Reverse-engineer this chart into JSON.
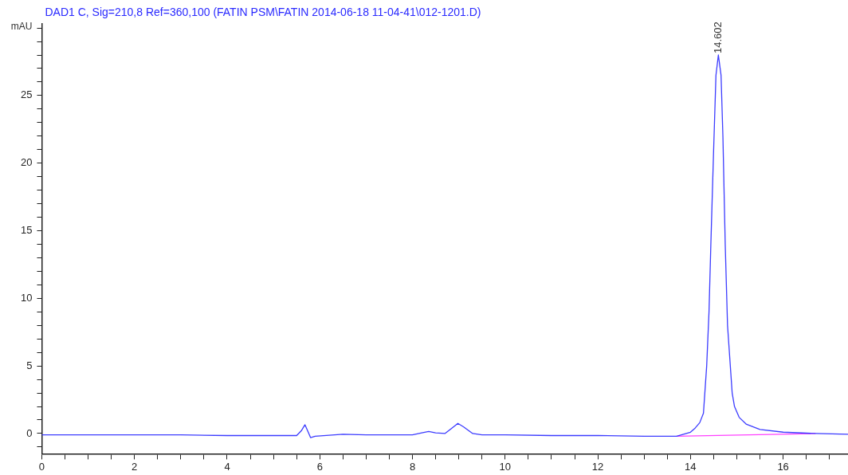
{
  "chart_data": {
    "type": "line",
    "title": "DAD1 C, Sig=210,8 Ref=360,100 (FATIN PSM\\FATIN 2014-06-18 11-04-41\\012-1201.D)",
    "ylabel": "mAU",
    "series": [
      {
        "color": "#3c3cff",
        "x": [
          0,
          1,
          2,
          3,
          4,
          5,
          5.5,
          5.6,
          5.68,
          5.75,
          5.8,
          5.9,
          6.5,
          7,
          8,
          8.2,
          8.35,
          8.5,
          8.7,
          8.85,
          8.98,
          9.1,
          9.3,
          9.5,
          10,
          11,
          12,
          13,
          13.7,
          14,
          14.1,
          14.2,
          14.28,
          14.35,
          14.4,
          14.44,
          14.5,
          14.55,
          14.602,
          14.66,
          14.7,
          14.75,
          14.8,
          14.9,
          14.95,
          15.05,
          15.2,
          15.5,
          16,
          16.7,
          17.4
        ],
        "values": [
          -0.1,
          -0.1,
          -0.1,
          -0.1,
          -0.15,
          -0.15,
          -0.15,
          0.2,
          0.65,
          0.1,
          -0.3,
          -0.2,
          -0.05,
          -0.1,
          -0.1,
          0.05,
          0.15,
          0.05,
          0,
          0.4,
          0.75,
          0.5,
          0,
          -0.1,
          -0.1,
          -0.15,
          -0.15,
          -0.2,
          -0.2,
          0.1,
          0.4,
          0.8,
          1.5,
          5,
          9,
          14,
          21,
          26.5,
          28,
          26.5,
          22,
          14,
          8,
          3,
          2,
          1.2,
          0.7,
          0.3,
          0.1,
          0,
          -0.05
        ]
      },
      {
        "color": "#ff40ff",
        "x": [
          13.7,
          16.7
        ],
        "values": [
          -0.2,
          0
        ]
      }
    ],
    "xlim": [
      0,
      17.4
    ],
    "xticks": [
      0,
      {
        "value": 0.5,
        "label": null
      },
      {
        "value": 1,
        "label": null
      },
      {
        "value": 1.5,
        "label": null
      },
      2,
      {
        "value": 2.5,
        "label": null
      },
      {
        "value": 3,
        "label": null
      },
      {
        "value": 3.5,
        "label": null
      },
      4,
      {
        "value": 4.5,
        "label": null
      },
      {
        "value": 5,
        "label": null
      },
      {
        "value": 5.5,
        "label": null
      },
      6,
      {
        "value": 6.5,
        "label": null
      },
      {
        "value": 7,
        "label": null
      },
      {
        "value": 7.5,
        "label": null
      },
      8,
      {
        "value": 8.5,
        "label": null
      },
      {
        "value": 9,
        "label": null
      },
      {
        "value": 9.5,
        "label": null
      },
      10,
      {
        "value": 10.5,
        "label": null
      },
      {
        "value": 11,
        "label": null
      },
      {
        "value": 11.5,
        "label": null
      },
      12,
      {
        "value": 12.5,
        "label": null
      },
      {
        "value": 13,
        "label": null
      },
      {
        "value": 13.5,
        "label": null
      },
      14,
      {
        "value": 14.5,
        "label": null
      },
      {
        "value": 15,
        "label": null
      },
      {
        "value": 15.5,
        "label": null
      },
      16,
      {
        "value": 16.5,
        "label": null
      },
      {
        "value": 17,
        "label": null
      }
    ],
    "ylim": [
      -1.5,
      30.3
    ],
    "yticks": [
      {
        "value": -1,
        "label": null
      },
      0,
      {
        "value": 1,
        "label": null
      },
      {
        "value": 2,
        "label": null
      },
      {
        "value": 3,
        "label": null
      },
      {
        "value": 4,
        "label": null
      },
      5,
      {
        "value": 6,
        "label": null
      },
      {
        "value": 7,
        "label": null
      },
      {
        "value": 8,
        "label": null
      },
      {
        "value": 9,
        "label": null
      },
      10,
      {
        "value": 11,
        "label": null
      },
      {
        "value": 12,
        "label": null
      },
      {
        "value": 13,
        "label": null
      },
      {
        "value": 14,
        "label": null
      },
      15,
      {
        "value": 16,
        "label": null
      },
      {
        "value": 17,
        "label": null
      },
      {
        "value": 18,
        "label": null
      },
      {
        "value": 19,
        "label": null
      },
      20,
      {
        "value": 21,
        "label": null
      },
      {
        "value": 22,
        "label": null
      },
      {
        "value": 23,
        "label": null
      },
      {
        "value": 24,
        "label": null
      },
      25,
      {
        "value": 26,
        "label": null
      },
      {
        "value": 27,
        "label": null
      },
      {
        "value": 28,
        "label": null
      },
      {
        "value": 29,
        "label": null
      },
      {
        "value": 30,
        "label": null
      }
    ],
    "grid": false,
    "legend": false,
    "marker": "none",
    "line_style": "solid",
    "annotations": [
      {
        "text": "14.602",
        "x": 14.602,
        "y": 28
      }
    ]
  }
}
